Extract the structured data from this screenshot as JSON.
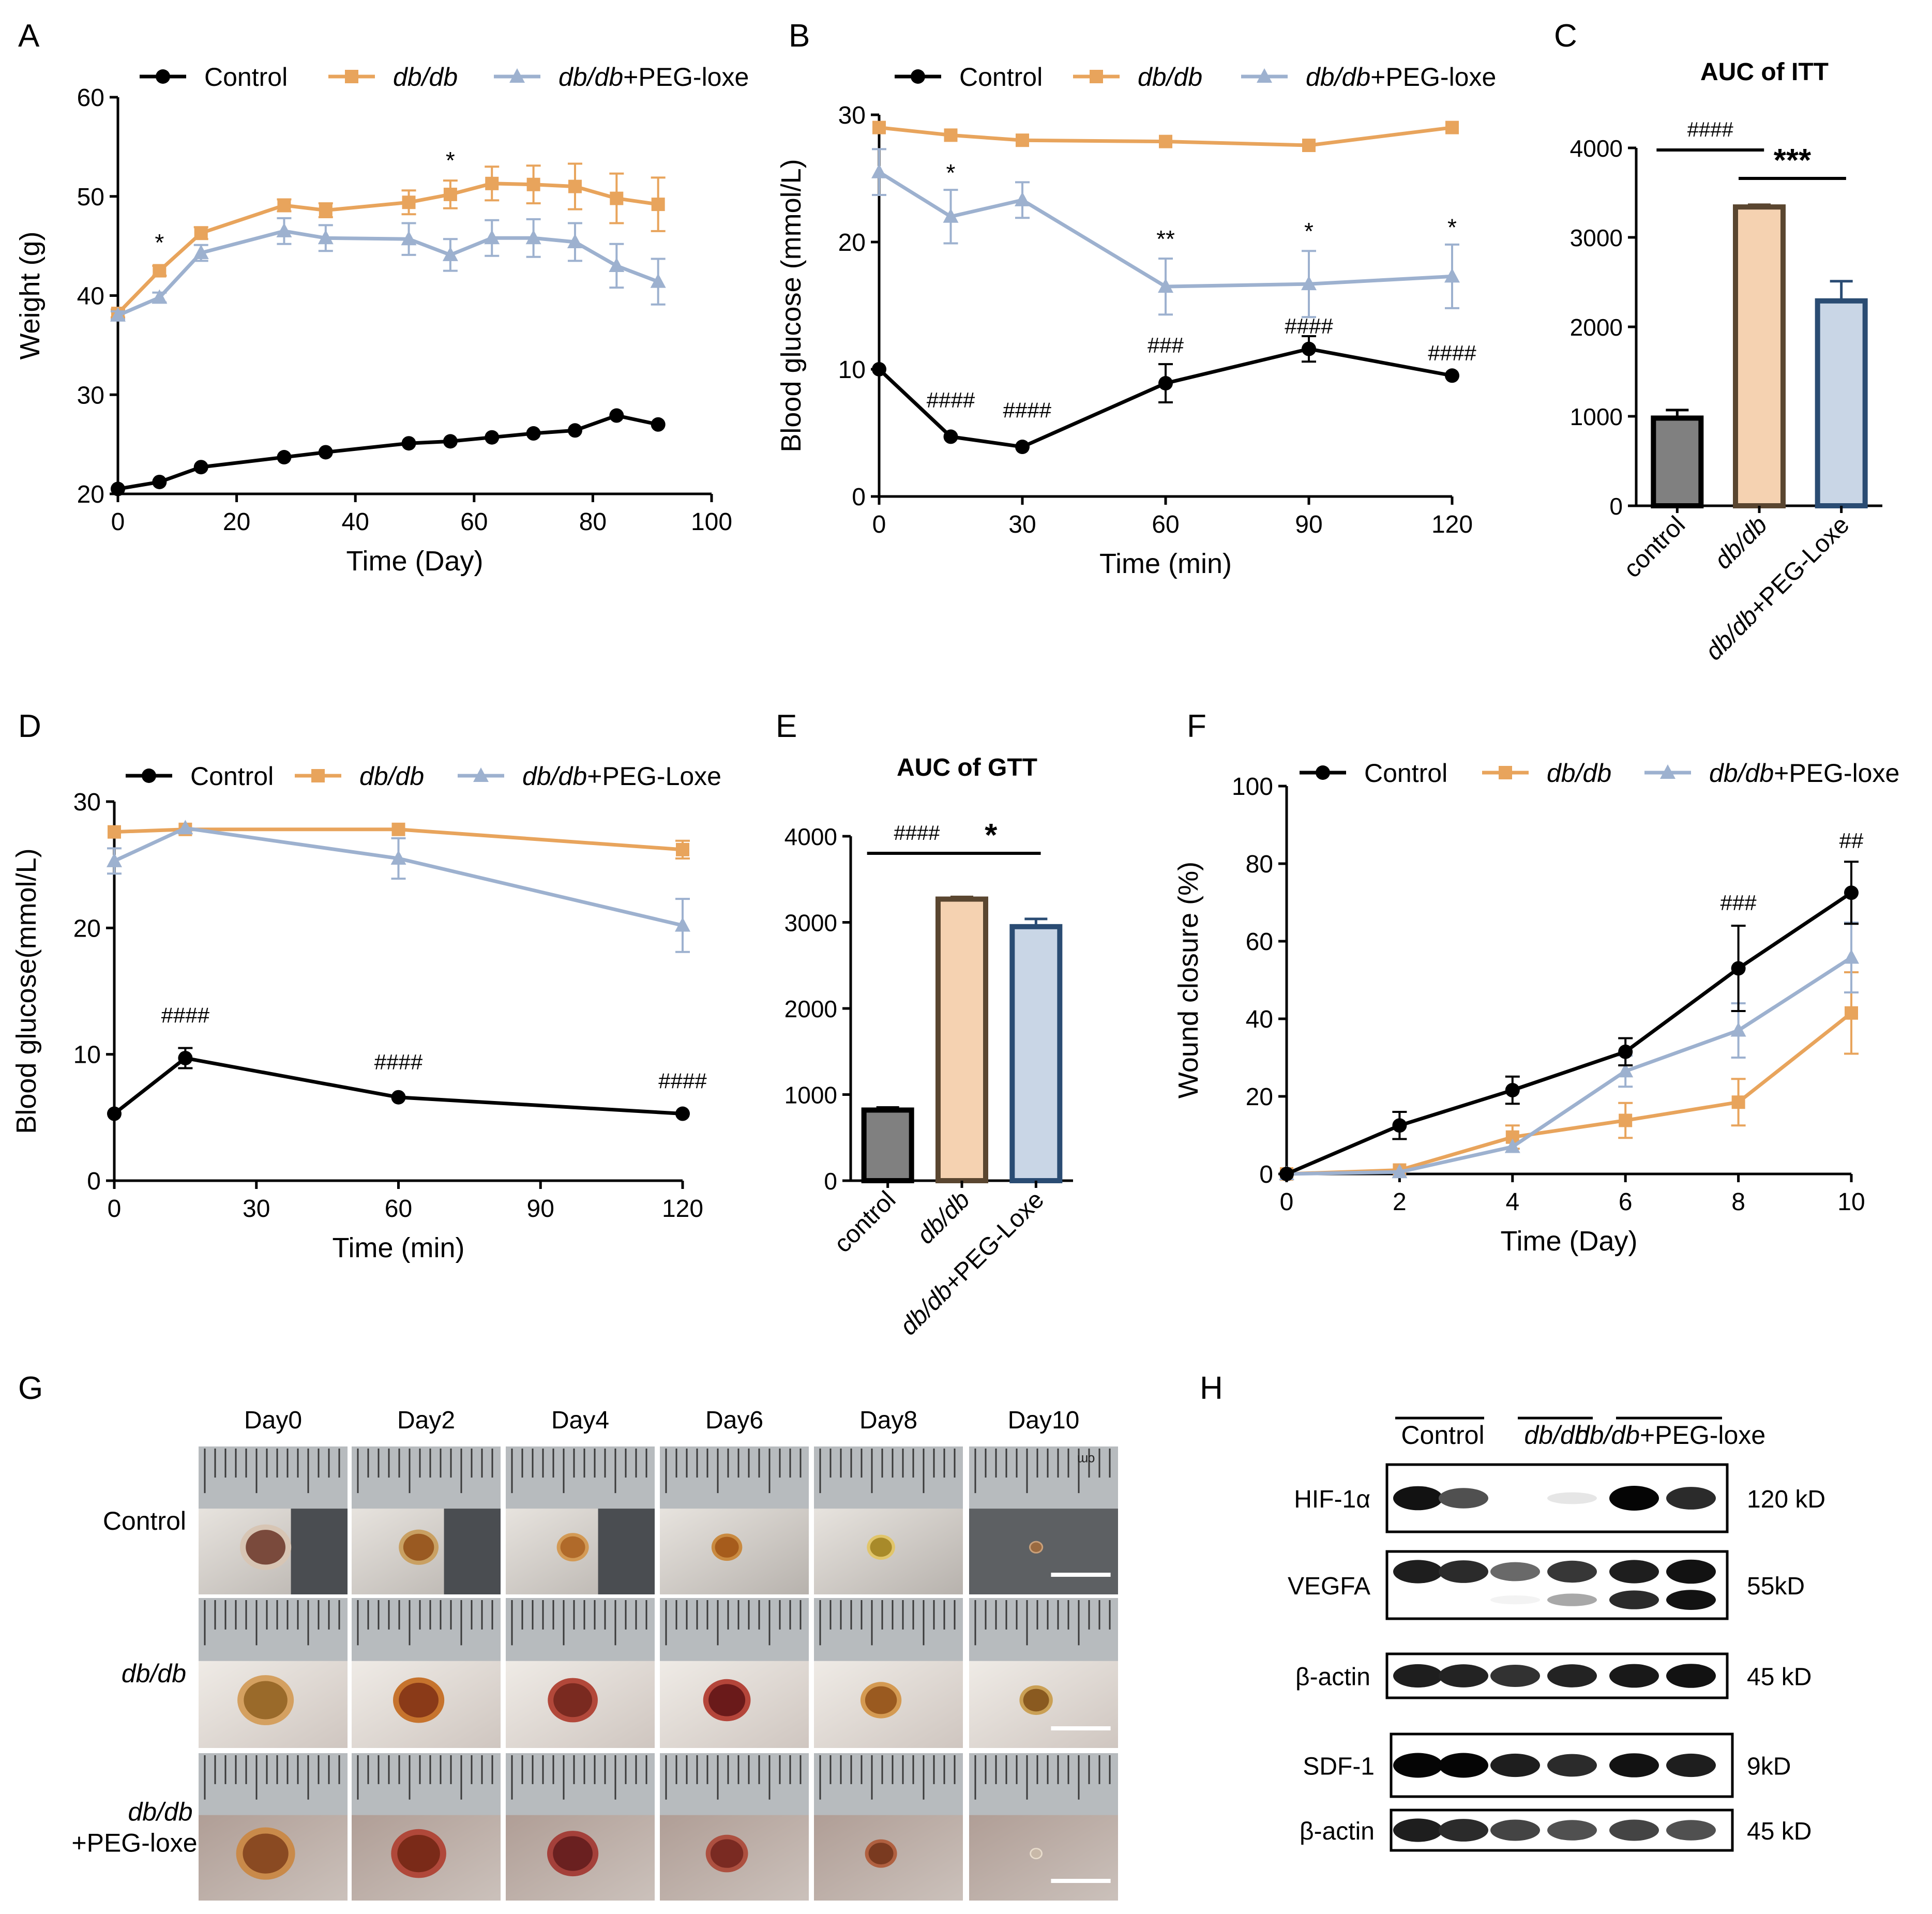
{
  "colors": {
    "control": "#000000",
    "dbdb": "#E8A45C",
    "peg": "#9DB1CF",
    "bar_control": "#808080",
    "bar_dbdb": "#F5D2B1",
    "bar_peg": "#C9D6E6",
    "bar_dbdb_edge": "#5A4630",
    "bar_peg_edge": "#2A4C73"
  },
  "panels": {
    "A": "A",
    "B": "B",
    "C": "C",
    "D": "D",
    "E": "E",
    "F": "F",
    "G": "G",
    "H": "H"
  },
  "chart_data": [
    {
      "id": "A",
      "type": "line",
      "xlabel": "Time (Day)",
      "ylabel": "Weight (g)",
      "xlim": [
        0,
        100
      ],
      "ylim": [
        20,
        60
      ],
      "xticks": [
        0,
        20,
        40,
        60,
        80,
        100
      ],
      "yticks": [
        20,
        30,
        40,
        50,
        60
      ],
      "legend": [
        "Control",
        "db/db",
        "db/db+PEG-loxe"
      ],
      "series": [
        {
          "name": "Control",
          "marker": "circle",
          "x": [
            0,
            7,
            14,
            28,
            35,
            49,
            56,
            63,
            70,
            77,
            84,
            91
          ],
          "y": [
            20.5,
            21.2,
            22.7,
            23.7,
            24.2,
            25.1,
            25.3,
            25.7,
            26.1,
            26.4,
            27.9,
            27.0
          ],
          "err": [
            0,
            0,
            0,
            0,
            0,
            0,
            0,
            0,
            0,
            0,
            0,
            0
          ]
        },
        {
          "name": "db/db",
          "marker": "square",
          "x": [
            0,
            7,
            14,
            28,
            35,
            49,
            56,
            63,
            70,
            77,
            84,
            91
          ],
          "y": [
            38.2,
            42.5,
            46.3,
            49.1,
            48.6,
            49.4,
            50.2,
            51.3,
            51.2,
            51.0,
            49.8,
            49.2
          ],
          "err": [
            0.4,
            0.5,
            0.6,
            0.6,
            0.7,
            1.2,
            1.4,
            1.7,
            1.9,
            2.3,
            2.5,
            2.7
          ]
        },
        {
          "name": "db/db+PEG-loxe",
          "marker": "triangle",
          "x": [
            0,
            7,
            14,
            28,
            35,
            49,
            56,
            63,
            70,
            77,
            84,
            91
          ],
          "y": [
            38.0,
            39.8,
            44.3,
            46.5,
            45.8,
            45.7,
            44.1,
            45.8,
            45.8,
            45.4,
            43.0,
            41.4
          ],
          "err": [
            0.4,
            0.5,
            0.8,
            1.3,
            1.3,
            1.6,
            1.6,
            1.8,
            1.9,
            1.9,
            2.2,
            2.3
          ]
        }
      ],
      "annotations": [
        {
          "text": "*",
          "x": 7,
          "y": 44.5
        },
        {
          "text": "*",
          "x": 56,
          "y": 52.8
        }
      ]
    },
    {
      "id": "B",
      "type": "line",
      "xlabel": "Time (min)",
      "ylabel": "Blood glucose (mmol/L)",
      "xlim": [
        0,
        120
      ],
      "ylim": [
        0,
        30
      ],
      "xticks": [
        0,
        30,
        60,
        90,
        120
      ],
      "yticks": [
        0,
        10,
        20,
        30
      ],
      "legend": [
        "Control",
        "db/db",
        "db/db+PEG-loxe"
      ],
      "series": [
        {
          "name": "Control",
          "marker": "circle",
          "x": [
            0,
            15,
            30,
            60,
            90,
            120
          ],
          "y": [
            10.0,
            4.7,
            3.9,
            8.9,
            11.6,
            9.5
          ],
          "err": [
            0,
            0,
            0,
            1.5,
            1.0,
            0
          ]
        },
        {
          "name": "db/db",
          "marker": "square",
          "x": [
            0,
            15,
            30,
            60,
            90,
            120
          ],
          "y": [
            29.0,
            28.4,
            28.0,
            27.9,
            27.6,
            29.0
          ],
          "err": [
            0,
            0,
            0,
            0,
            0,
            0
          ]
        },
        {
          "name": "db/db+PEG-loxe",
          "marker": "triangle",
          "x": [
            0,
            15,
            30,
            60,
            90,
            120
          ],
          "y": [
            25.5,
            22.0,
            23.3,
            16.5,
            16.7,
            17.3
          ],
          "err": [
            1.8,
            2.1,
            1.4,
            2.2,
            2.6,
            2.5
          ]
        }
      ],
      "annotations": [
        {
          "text": "*",
          "x": 15,
          "y": 24.8
        },
        {
          "text": "**",
          "x": 60,
          "y": 19.6
        },
        {
          "text": "*",
          "x": 90,
          "y": 20.2
        },
        {
          "text": "*",
          "x": 120,
          "y": 20.5
        },
        {
          "text": "####",
          "x": 15,
          "y": 7.0
        },
        {
          "text": "####",
          "x": 31,
          "y": 6.2
        },
        {
          "text": "###",
          "x": 60,
          "y": 11.3
        },
        {
          "text": "####",
          "x": 90,
          "y": 12.8
        },
        {
          "text": "####",
          "x": 120,
          "y": 10.7
        }
      ]
    },
    {
      "id": "C",
      "type": "bar",
      "title": "AUC of ITT",
      "categories": [
        "control",
        "db/db",
        "db/db+PEG-Loxe"
      ],
      "values": [
        980,
        3340,
        2290
      ],
      "errors": [
        90,
        25,
        220
      ],
      "ylim": [
        0,
        4000
      ],
      "yticks": [
        0,
        1000,
        2000,
        3000,
        4000
      ],
      "comparisons": [
        {
          "from": 0,
          "to": 1,
          "label": "####"
        },
        {
          "from": 1,
          "to": 2,
          "label": "***"
        }
      ]
    },
    {
      "id": "D",
      "type": "line",
      "xlabel": "Time (min)",
      "ylabel": "Blood glucose(mmol/L)",
      "xlim": [
        0,
        120
      ],
      "ylim": [
        0,
        30
      ],
      "xticks": [
        0,
        30,
        60,
        90,
        120
      ],
      "yticks": [
        0,
        10,
        20,
        30
      ],
      "legend": [
        "Control",
        "db/db",
        "db/db+PEG-Loxe"
      ],
      "series": [
        {
          "name": "Control",
          "marker": "circle",
          "x": [
            0,
            15,
            60,
            120
          ],
          "y": [
            5.3,
            9.7,
            6.6,
            5.3
          ],
          "err": [
            0,
            0.8,
            0,
            0
          ]
        },
        {
          "name": "db/db",
          "marker": "square",
          "x": [
            0,
            15,
            60,
            120
          ],
          "y": [
            27.6,
            27.8,
            27.8,
            26.2
          ],
          "err": [
            0,
            0,
            0,
            0.7
          ]
        },
        {
          "name": "db/db+PEG-Loxe",
          "marker": "triangle",
          "x": [
            0,
            15,
            60,
            120
          ],
          "y": [
            25.3,
            27.9,
            25.5,
            20.2
          ],
          "err": [
            1.0,
            0,
            1.6,
            2.1
          ]
        }
      ],
      "annotations": [
        {
          "text": "####",
          "x": 15,
          "y": 12.5
        },
        {
          "text": "####",
          "x": 60,
          "y": 8.8
        },
        {
          "text": "####",
          "x": 120,
          "y": 7.3
        }
      ]
    },
    {
      "id": "E",
      "type": "bar",
      "title": "AUC of GTT",
      "categories": [
        "control",
        "db/db",
        "db/db+PEG-Loxe"
      ],
      "values": [
        820,
        3270,
        2950
      ],
      "errors": [
        30,
        25,
        90
      ],
      "ylim": [
        0,
        4000
      ],
      "yticks": [
        0,
        1000,
        2000,
        3000,
        4000
      ],
      "comparisons": [
        {
          "from": 0,
          "to": 1,
          "label": "####"
        },
        {
          "from": 1,
          "to": 2,
          "label": "*"
        }
      ]
    },
    {
      "id": "F",
      "type": "line",
      "xlabel": "Time (Day)",
      "ylabel": "Wound closure (%)",
      "xlim": [
        0,
        10
      ],
      "ylim": [
        0,
        100
      ],
      "xticks": [
        0,
        2,
        4,
        6,
        8,
        10
      ],
      "yticks": [
        0,
        20,
        40,
        60,
        80,
        100
      ],
      "legend": [
        "Control",
        "db/db",
        "db/db+PEG-loxe"
      ],
      "series": [
        {
          "name": "Control",
          "marker": "circle",
          "x": [
            0,
            2,
            4,
            6,
            8,
            10
          ],
          "y": [
            0,
            12.5,
            21.6,
            31.5,
            53.0,
            72.5
          ],
          "err": [
            0,
            3.5,
            3.5,
            3.5,
            11,
            8
          ]
        },
        {
          "name": "db/db",
          "marker": "square",
          "x": [
            0,
            2,
            4,
            6,
            8,
            10
          ],
          "y": [
            0,
            1.0,
            9.5,
            13.8,
            18.5,
            41.5
          ],
          "err": [
            0,
            0,
            3,
            4.5,
            6,
            10.5
          ]
        },
        {
          "name": "db/db+PEG-loxe",
          "marker": "triangle",
          "x": [
            0,
            2,
            4,
            6,
            8,
            10
          ],
          "y": [
            0,
            0.5,
            7.0,
            26.5,
            37.0,
            55.8
          ],
          "err": [
            0,
            0,
            0,
            4,
            7,
            9
          ]
        }
      ],
      "annotations": [
        {
          "text": "###",
          "x": 8,
          "y": 68
        },
        {
          "text": "##",
          "x": 10,
          "y": 84
        }
      ]
    }
  ],
  "panelG": {
    "days": [
      "Day0",
      "Day2",
      "Day4",
      "Day6",
      "Day8",
      "Day10"
    ],
    "rows": [
      {
        "l1": "Control",
        "l2": ""
      },
      {
        "l1": "db/db",
        "l2": ""
      },
      {
        "l1": "db/db",
        "l2": "+PEG-loxe"
      }
    ],
    "ruler_mark": "cm"
  },
  "panelH": {
    "groups": [
      "Control",
      "db/db",
      "db/db+PEG-loxe"
    ],
    "blots": [
      {
        "label": "HIF-1α",
        "kd": "120 kD",
        "intensity": [
          0.95,
          0.7,
          0.0,
          0.1,
          1.0,
          0.85
        ],
        "secondary": null
      },
      {
        "label": "VEGFA",
        "kd": "55kD",
        "intensity": [
          0.9,
          0.85,
          0.6,
          0.8,
          0.9,
          0.95
        ],
        "secondary": [
          0,
          0,
          0.05,
          0.35,
          0.85,
          0.95
        ]
      },
      {
        "label": "β-actin",
        "kd": "45 kD",
        "intensity": [
          0.9,
          0.88,
          0.82,
          0.88,
          0.92,
          0.95
        ],
        "secondary": null
      },
      {
        "label": "SDF-1",
        "kd": "9kD",
        "intensity": [
          1.0,
          1.0,
          0.9,
          0.85,
          0.95,
          0.9
        ],
        "secondary": null
      },
      {
        "label": "β-actin",
        "kd": "45 kD",
        "intensity": [
          0.9,
          0.85,
          0.75,
          0.7,
          0.75,
          0.7
        ],
        "secondary": null
      }
    ]
  }
}
